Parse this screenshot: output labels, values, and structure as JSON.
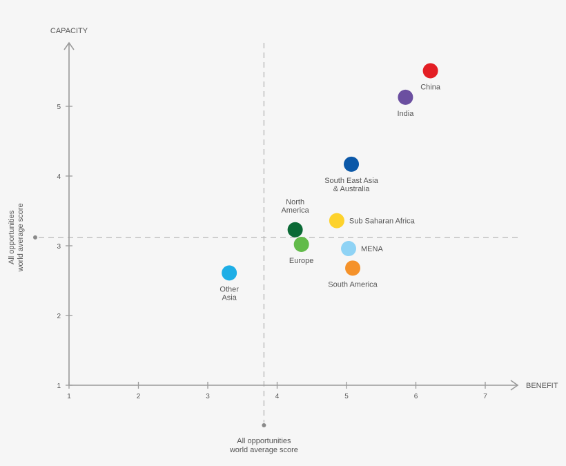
{
  "chart_data": {
    "type": "scatter",
    "xlabel": "BENEFIT",
    "ylabel": "CAPACITY",
    "xlim": [
      1,
      7.5
    ],
    "ylim": [
      1,
      5.9
    ],
    "xticks": [
      "1",
      "2",
      "3",
      "4",
      "5",
      "6",
      "7"
    ],
    "yticks": [
      "1",
      "2",
      "3",
      "4",
      "5"
    ],
    "grid": false,
    "reference_lines": {
      "vertical": {
        "x": 3.81,
        "label_lines": [
          "All opportunities",
          "world average score"
        ]
      },
      "horizontal": {
        "y": 3.12,
        "label_lines": [
          "All opportunities",
          "world average score"
        ]
      }
    },
    "points": [
      {
        "label_lines": [
          "China"
        ],
        "x": 6.21,
        "y": 5.51,
        "color": "#e31e24",
        "label_position": "below"
      },
      {
        "label_lines": [
          "India"
        ],
        "x": 5.85,
        "y": 5.13,
        "color": "#6b4fa0",
        "label_position": "below"
      },
      {
        "label_lines": [
          "South East Asia",
          "& Australia"
        ],
        "x": 5.07,
        "y": 4.17,
        "color": "#0b58a8",
        "label_position": "below"
      },
      {
        "label_lines": [
          "Sub Saharan Africa"
        ],
        "x": 4.86,
        "y": 3.36,
        "color": "#fdd22c",
        "label_position": "right"
      },
      {
        "label_lines": [
          "North",
          "America"
        ],
        "x": 4.26,
        "y": 3.23,
        "color": "#0b6a36",
        "label_position": "above"
      },
      {
        "label_lines": [
          "Europe"
        ],
        "x": 4.35,
        "y": 3.02,
        "color": "#62bb4a",
        "label_position": "below"
      },
      {
        "label_lines": [
          "MENA"
        ],
        "x": 5.03,
        "y": 2.96,
        "color": "#8fd3f5",
        "label_position": "right"
      },
      {
        "label_lines": [
          "South America"
        ],
        "x": 5.09,
        "y": 2.68,
        "color": "#f5922a",
        "label_position": "below"
      },
      {
        "label_lines": [
          "Other",
          "Asia"
        ],
        "x": 3.31,
        "y": 2.61,
        "color": "#1eaee6",
        "label_position": "below"
      }
    ]
  }
}
